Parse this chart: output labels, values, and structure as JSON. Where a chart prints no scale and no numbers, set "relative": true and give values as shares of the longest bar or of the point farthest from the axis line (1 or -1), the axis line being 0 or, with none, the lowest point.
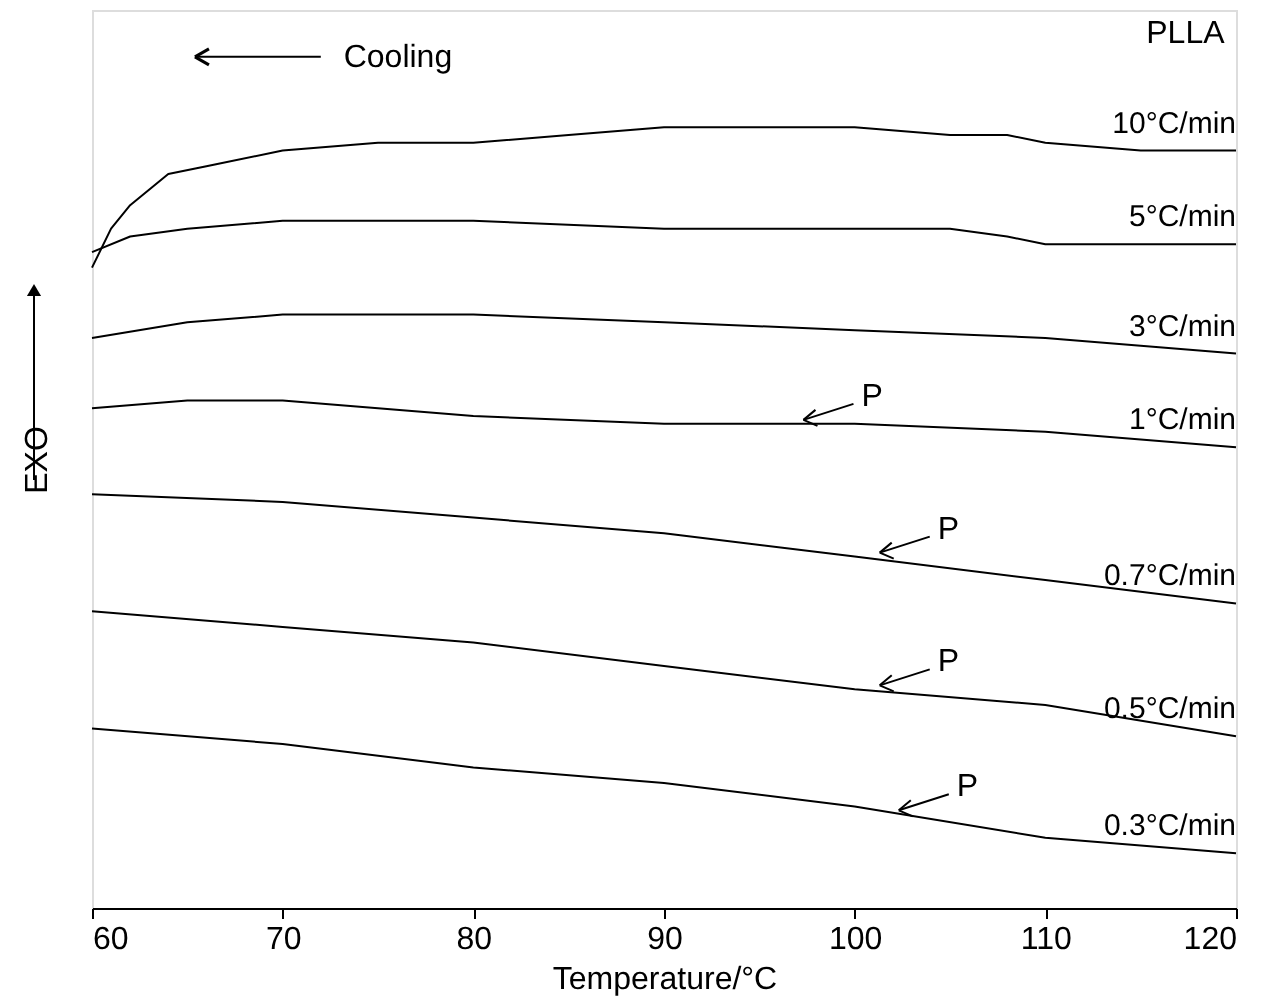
{
  "chart_data": {
    "type": "line",
    "relative": true,
    "xlabel": "Temperature/°C",
    "ylabel": "EXO",
    "xlim": [
      60,
      120
    ],
    "xticks": [
      60,
      70,
      80,
      90,
      100,
      110,
      120
    ],
    "grid": false,
    "legend": false,
    "marker": "none",
    "line_style": "solid",
    "x": [
      60,
      70,
      80,
      90,
      100,
      110,
      120
    ],
    "series": [
      {
        "name": "10°C/min",
        "color": "#000000",
        "x": [
          60,
          61,
          62,
          64,
          66,
          70,
          75,
          80,
          85,
          90,
          95,
          100,
          105,
          108,
          110,
          115,
          120
        ],
        "values": [
          0.82,
          0.87,
          0.9,
          0.94,
          0.95,
          0.97,
          0.98,
          0.98,
          0.99,
          1,
          1,
          1,
          0.99,
          0.99,
          0.98,
          0.97,
          0.97
        ]
      },
      {
        "name": "5°C/min",
        "color": "#000000",
        "x": [
          60,
          62,
          65,
          70,
          80,
          90,
          100,
          105,
          108,
          110,
          115,
          120
        ],
        "values": [
          0.84,
          0.86,
          0.87,
          0.88,
          0.88,
          0.87,
          0.87,
          0.87,
          0.86,
          0.85,
          0.85,
          0.85
        ]
      },
      {
        "name": "3°C/min",
        "color": "#000000",
        "x": [
          60,
          65,
          70,
          80,
          90,
          100,
          110,
          115,
          120
        ],
        "values": [
          0.73,
          0.75,
          0.76,
          0.76,
          0.75,
          0.74,
          0.73,
          0.72,
          0.71
        ]
      },
      {
        "name": "1°C/min",
        "color": "#000000",
        "x": [
          60,
          65,
          70,
          80,
          90,
          100,
          110,
          120
        ],
        "values": [
          0.64,
          0.65,
          0.65,
          0.63,
          0.62,
          0.62,
          0.61,
          0.59
        ]
      },
      {
        "name": "0.7°C/min",
        "color": "#000000",
        "values": [
          0.53,
          0.52,
          0.5,
          0.48,
          0.45,
          0.42,
          0.39
        ]
      },
      {
        "name": "0.5°C/min",
        "color": "#000000",
        "values": [
          0.38,
          0.36,
          0.34,
          0.31,
          0.28,
          0.26,
          0.22
        ]
      },
      {
        "name": "0.3°C/min",
        "color": "#000000",
        "values": [
          0.23,
          0.21,
          0.18,
          0.16,
          0.13,
          0.09,
          0.07
        ]
      }
    ],
    "annotations": [
      "PLLA",
      "Cooling",
      {
        "text": "P",
        "x": 97,
        "y": 0.62
      },
      {
        "text": "P",
        "x": 101,
        "y": 0.45
      },
      {
        "text": "P",
        "x": 101,
        "y": 0.28
      },
      {
        "text": "P",
        "x": 102,
        "y": 0.12
      }
    ]
  }
}
